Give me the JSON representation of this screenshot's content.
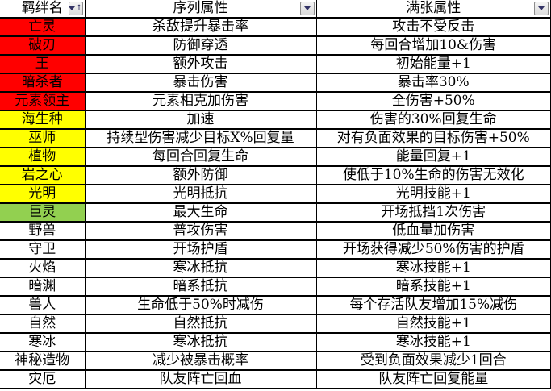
{
  "table": {
    "columns": [
      {
        "label": "羁绊名",
        "filter_state": "sorted-ascending"
      },
      {
        "label": "序列属性",
        "filter_state": "none"
      },
      {
        "label": "满张属性",
        "filter_state": "none"
      }
    ],
    "rows": [
      {
        "name": "亡灵",
        "color": "red",
        "seq": "杀敌提升暴击率",
        "full": "攻击不受反击"
      },
      {
        "name": "破刃",
        "color": "red",
        "seq": "防御穿透",
        "full": "每回合增加10&伤害"
      },
      {
        "name": "王",
        "color": "red",
        "seq": "额外攻击",
        "full": "初始能量+1"
      },
      {
        "name": "暗杀者",
        "color": "red",
        "seq": "暴击伤害",
        "full": "暴击率30%"
      },
      {
        "name": "元素领主",
        "color": "red",
        "seq": "元素相克加伤害",
        "full": "全伤害+50%"
      },
      {
        "name": "海生种",
        "color": "yellow",
        "seq": "加速",
        "full": "伤害的30%回复生命"
      },
      {
        "name": "巫师",
        "color": "yellow",
        "seq": "持续型伤害减少目标X%回复量",
        "full": "对有负面效果的目标伤害+50%"
      },
      {
        "name": "植物",
        "color": "yellow",
        "seq": "每回合回复生命",
        "full": "能量回复+1"
      },
      {
        "name": "岩之心",
        "color": "yellow",
        "seq": "额外防御",
        "full": "使低于10%生命的伤害无效化"
      },
      {
        "name": "光明",
        "color": "yellow",
        "seq": "光明抵抗",
        "full": "光明技能+1"
      },
      {
        "name": "巨灵",
        "color": "green",
        "seq": "最大生命",
        "full": "开场抵挡1次伤害"
      },
      {
        "name": "野兽",
        "color": "white",
        "seq": "普攻伤害",
        "full": "低血量加伤害"
      },
      {
        "name": "守卫",
        "color": "white",
        "seq": "开场护盾",
        "full": "开场获得减少50%伤害的护盾"
      },
      {
        "name": "火焰",
        "color": "white",
        "seq": "寒冰抵抗",
        "full": "寒冰技能+1"
      },
      {
        "name": "暗渊",
        "color": "white",
        "seq": "暗系抵抗",
        "full": "暗系技能+1"
      },
      {
        "name": "兽人",
        "color": "white",
        "seq": "生命低于50%时减伤",
        "full": "每个存活队友增加15%减伤"
      },
      {
        "name": "自然",
        "color": "white",
        "seq": "自然抵抗",
        "full": "自然技能+1"
      },
      {
        "name": "寒冰",
        "color": "white",
        "seq": "寒冰抵抗",
        "full": "寒冰技能+1"
      },
      {
        "name": "神秘造物",
        "color": "white",
        "seq": "减少被暴击概率",
        "full": "受到负面效果减少1回合"
      },
      {
        "name": "灾厄",
        "color": "white",
        "seq": "队友阵亡回血",
        "full": "队友阵亡回复能量"
      }
    ]
  },
  "icons": {
    "filter_dropdown": "filter-dropdown-icon",
    "sort_ascending": "↑"
  },
  "colors": {
    "red": "#ff0000",
    "yellow": "#ffff00",
    "green": "#92d050",
    "white": "#ffffff",
    "border": "#000000",
    "filter_arrow": "#333366",
    "button_face": "#e6e6e6",
    "button_border": "#8c8c8c"
  }
}
